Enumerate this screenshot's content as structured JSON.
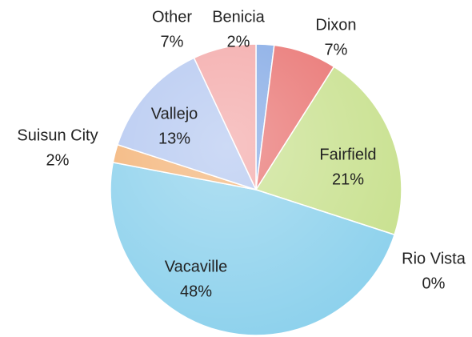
{
  "chart_data": {
    "type": "pie",
    "categories": [
      "Benicia",
      "Dixon",
      "Fairfield",
      "Rio Vista",
      "Vacaville",
      "Suisun City",
      "Vallejo",
      "Other"
    ],
    "values": [
      2,
      7,
      21,
      0,
      48,
      2,
      13,
      7
    ],
    "value_labels": [
      "2%",
      "7%",
      "21%",
      "0%",
      "48%",
      "2%",
      "13%",
      "7%"
    ],
    "colors": [
      "#7fa6e4",
      "#e86e6c",
      "#c7e08c",
      "#9a7fc0",
      "#8ad0ec",
      "#f3b173",
      "#b2c6f0",
      "#f3a5a5"
    ]
  }
}
